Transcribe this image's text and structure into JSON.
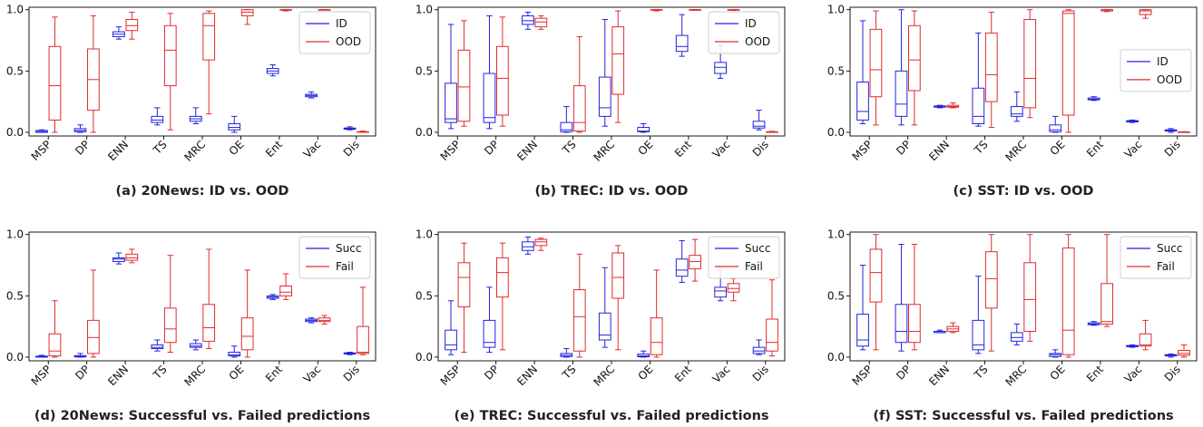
{
  "colors": {
    "first": "#2323e0",
    "second": "#e02b2b",
    "axis": "#000000"
  },
  "chart_data": [
    {
      "type": "box",
      "caption": "(a) 20News: ID vs. OOD",
      "categories": [
        "MSP",
        "DP",
        "ENN",
        "TS",
        "MRC",
        "OE",
        "Ent",
        "Vac",
        "Dis"
      ],
      "yticks": [
        "0.0",
        "0.5",
        "1.0"
      ],
      "ylim": [
        -0.03,
        1.02
      ],
      "legend_position": "top-right",
      "series": [
        {
          "name": "ID",
          "boxes": [
            [
              0,
              0,
              0.005,
              0.015,
              0.02
            ],
            [
              0,
              0.005,
              0.015,
              0.03,
              0.06
            ],
            [
              0.76,
              0.78,
              0.8,
              0.82,
              0.86
            ],
            [
              0.06,
              0.08,
              0.1,
              0.13,
              0.2
            ],
            [
              0.07,
              0.09,
              0.11,
              0.13,
              0.2
            ],
            [
              0,
              0.02,
              0.04,
              0.07,
              0.13
            ],
            [
              0.46,
              0.48,
              0.5,
              0.52,
              0.55
            ],
            [
              0.28,
              0.29,
              0.3,
              0.31,
              0.33
            ],
            [
              0.02,
              0.025,
              0.03,
              0.035,
              0.045
            ]
          ]
        },
        {
          "name": "OOD",
          "boxes": [
            [
              0,
              0.1,
              0.38,
              0.7,
              0.94
            ],
            [
              0,
              0.18,
              0.43,
              0.68,
              0.95
            ],
            [
              0.76,
              0.83,
              0.87,
              0.92,
              0.98
            ],
            [
              0.02,
              0.38,
              0.67,
              0.87,
              0.97
            ],
            [
              0.15,
              0.59,
              0.87,
              0.97,
              0.99
            ],
            [
              0.88,
              0.95,
              0.98,
              1.0,
              1.0
            ],
            [
              0.99,
              1.0,
              1.0,
              1.0,
              1.0
            ],
            [
              1.0,
              1.0,
              1.0,
              1.0,
              1.0
            ],
            [
              0,
              0.001,
              0.003,
              0.005,
              0.01
            ]
          ]
        }
      ]
    },
    {
      "type": "box",
      "caption": "(b) TREC: ID vs. OOD",
      "categories": [
        "MSP",
        "DP",
        "ENN",
        "TS",
        "MRC",
        "OE",
        "Ent",
        "Vac",
        "Dis"
      ],
      "yticks": [
        "0.0",
        "0.5",
        "1.0"
      ],
      "ylim": [
        -0.03,
        1.02
      ],
      "legend_position": "top-right",
      "series": [
        {
          "name": "ID",
          "boxes": [
            [
              0.03,
              0.08,
              0.11,
              0.4,
              0.88
            ],
            [
              0.03,
              0.08,
              0.12,
              0.48,
              0.95
            ],
            [
              0.84,
              0.88,
              0.91,
              0.95,
              0.98
            ],
            [
              0,
              0.005,
              0.02,
              0.08,
              0.21
            ],
            [
              0.05,
              0.13,
              0.2,
              0.45,
              0.92
            ],
            [
              0,
              0.005,
              0.01,
              0.04,
              0.07
            ],
            [
              0.62,
              0.66,
              0.7,
              0.79,
              0.96
            ],
            [
              0.44,
              0.48,
              0.53,
              0.57,
              0.71
            ],
            [
              0.02,
              0.035,
              0.05,
              0.09,
              0.18
            ]
          ]
        },
        {
          "name": "OOD",
          "boxes": [
            [
              0.05,
              0.09,
              0.37,
              0.67,
              0.91
            ],
            [
              0.05,
              0.14,
              0.44,
              0.7,
              0.94
            ],
            [
              0.84,
              0.86,
              0.9,
              0.93,
              0.95
            ],
            [
              0,
              0.01,
              0.08,
              0.38,
              0.78
            ],
            [
              0.08,
              0.31,
              0.64,
              0.86,
              0.99
            ],
            [
              0.99,
              1.0,
              1.0,
              1.0,
              1.0
            ],
            [
              0.995,
              1.0,
              1.0,
              1.0,
              1.0
            ],
            [
              0.995,
              1.0,
              1.0,
              1.0,
              1.0
            ],
            [
              0,
              0.001,
              0.002,
              0.004,
              0.008
            ]
          ]
        }
      ]
    },
    {
      "type": "box",
      "caption": "(c) SST: ID vs. OOD",
      "categories": [
        "MSP",
        "DP",
        "ENN",
        "TS",
        "MRC",
        "OE",
        "Ent",
        "Vac",
        "Dis"
      ],
      "yticks": [
        "0.0",
        "0.5",
        "1.0"
      ],
      "ylim": [
        -0.03,
        1.02
      ],
      "legend_position": "center-right",
      "series": [
        {
          "name": "ID",
          "boxes": [
            [
              0.07,
              0.1,
              0.17,
              0.41,
              0.91
            ],
            [
              0.06,
              0.13,
              0.23,
              0.5,
              1.0
            ],
            [
              0.2,
              0.205,
              0.21,
              0.215,
              0.22
            ],
            [
              0.05,
              0.07,
              0.13,
              0.36,
              0.81
            ],
            [
              0.09,
              0.13,
              0.15,
              0.21,
              0.33
            ],
            [
              0,
              0.005,
              0.02,
              0.06,
              0.13
            ],
            [
              0.26,
              0.265,
              0.27,
              0.28,
              0.29
            ],
            [
              0.08,
              0.085,
              0.09,
              0.095,
              0.1
            ],
            [
              0,
              0.01,
              0.015,
              0.02,
              0.03
            ]
          ]
        },
        {
          "name": "OOD",
          "boxes": [
            [
              0.06,
              0.29,
              0.51,
              0.84,
              0.99
            ],
            [
              0.06,
              0.34,
              0.59,
              0.87,
              0.99
            ],
            [
              0.2,
              0.205,
              0.21,
              0.22,
              0.24
            ],
            [
              0.04,
              0.25,
              0.47,
              0.81,
              0.98
            ],
            [
              0.12,
              0.2,
              0.44,
              0.92,
              1.0
            ],
            [
              0,
              0.14,
              0.97,
              0.99,
              1.0
            ],
            [
              0.985,
              0.99,
              1.0,
              1.0,
              1.0
            ],
            [
              0.93,
              0.96,
              0.99,
              1.0,
              1.0
            ],
            [
              0,
              0.001,
              0.002,
              0.003,
              0.005
            ]
          ]
        }
      ]
    },
    {
      "type": "box",
      "caption": "(d) 20News: Successful vs. Failed predictions",
      "categories": [
        "MSP",
        "DP",
        "ENN",
        "TS",
        "MRC",
        "OE",
        "Ent",
        "Vac",
        "Dis"
      ],
      "yticks": [
        "0.0",
        "0.5",
        "1.0"
      ],
      "ylim": [
        -0.03,
        1.02
      ],
      "legend_position": "top-right",
      "series": [
        {
          "name": "Succ",
          "boxes": [
            [
              0,
              0,
              0.003,
              0.008,
              0.015
            ],
            [
              0,
              0.002,
              0.006,
              0.012,
              0.03
            ],
            [
              0.76,
              0.78,
              0.8,
              0.81,
              0.85
            ],
            [
              0.05,
              0.07,
              0.08,
              0.1,
              0.14
            ],
            [
              0.06,
              0.08,
              0.09,
              0.11,
              0.14
            ],
            [
              0,
              0.01,
              0.02,
              0.04,
              0.09
            ],
            [
              0.47,
              0.48,
              0.49,
              0.5,
              0.51
            ],
            [
              0.28,
              0.29,
              0.3,
              0.31,
              0.32
            ],
            [
              0.02,
              0.025,
              0.03,
              0.035,
              0.04
            ]
          ]
        },
        {
          "name": "Fail",
          "boxes": [
            [
              0,
              0.01,
              0.05,
              0.19,
              0.46
            ],
            [
              0,
              0.03,
              0.16,
              0.3,
              0.71
            ],
            [
              0.77,
              0.79,
              0.81,
              0.84,
              0.88
            ],
            [
              0.04,
              0.12,
              0.23,
              0.4,
              0.83
            ],
            [
              0.07,
              0.13,
              0.24,
              0.43,
              0.88
            ],
            [
              0,
              0.06,
              0.17,
              0.32,
              0.71
            ],
            [
              0.47,
              0.5,
              0.53,
              0.58,
              0.68
            ],
            [
              0.27,
              0.29,
              0.3,
              0.32,
              0.34
            ],
            [
              0.02,
              0.03,
              0.04,
              0.25,
              0.57
            ]
          ]
        }
      ]
    },
    {
      "type": "box",
      "caption": "(e) TREC: Successful vs. Failed predictions",
      "categories": [
        "MSP",
        "DP",
        "ENN",
        "TS",
        "MRC",
        "OE",
        "Ent",
        "Vac",
        "Dis"
      ],
      "yticks": [
        "0.0",
        "0.5",
        "1.0"
      ],
      "ylim": [
        -0.03,
        1.02
      ],
      "legend_position": "top-right",
      "series": [
        {
          "name": "Succ",
          "boxes": [
            [
              0.02,
              0.06,
              0.1,
              0.22,
              0.46
            ],
            [
              0.04,
              0.08,
              0.12,
              0.3,
              0.57
            ],
            [
              0.84,
              0.87,
              0.9,
              0.94,
              0.98
            ],
            [
              0,
              0.005,
              0.015,
              0.03,
              0.07
            ],
            [
              0.08,
              0.14,
              0.18,
              0.36,
              0.73
            ],
            [
              0,
              0.003,
              0.01,
              0.025,
              0.05
            ],
            [
              0.61,
              0.66,
              0.71,
              0.8,
              0.95
            ],
            [
              0.46,
              0.49,
              0.54,
              0.57,
              0.71
            ],
            [
              0.02,
              0.03,
              0.05,
              0.08,
              0.14
            ]
          ]
        },
        {
          "name": "Fail",
          "boxes": [
            [
              0.04,
              0.41,
              0.65,
              0.77,
              0.93
            ],
            [
              0.06,
              0.49,
              0.69,
              0.81,
              0.93
            ],
            [
              0.87,
              0.91,
              0.94,
              0.96,
              0.97
            ],
            [
              0,
              0.05,
              0.33,
              0.55,
              0.84
            ],
            [
              0.06,
              0.48,
              0.65,
              0.85,
              0.91
            ],
            [
              0,
              0.02,
              0.12,
              0.32,
              0.71
            ],
            [
              0.62,
              0.72,
              0.78,
              0.83,
              0.96
            ],
            [
              0.46,
              0.53,
              0.56,
              0.6,
              0.64
            ],
            [
              0.01,
              0.05,
              0.12,
              0.31,
              0.63
            ]
          ]
        }
      ]
    },
    {
      "type": "box",
      "caption": "(f) SST: Successful vs. Failed predictions",
      "categories": [
        "MSP",
        "DP",
        "ENN",
        "TS",
        "MRC",
        "OE",
        "Ent",
        "Vac",
        "Dis"
      ],
      "yticks": [
        "0.0",
        "0.5",
        "1.0"
      ],
      "ylim": [
        -0.03,
        1.02
      ],
      "legend_position": "top-right",
      "series": [
        {
          "name": "Succ",
          "boxes": [
            [
              0.06,
              0.09,
              0.14,
              0.35,
              0.75
            ],
            [
              0.05,
              0.12,
              0.21,
              0.43,
              0.92
            ],
            [
              0.2,
              0.2,
              0.21,
              0.21,
              0.22
            ],
            [
              0.03,
              0.06,
              0.1,
              0.3,
              0.66
            ],
            [
              0.1,
              0.13,
              0.16,
              0.2,
              0.27
            ],
            [
              0,
              0.005,
              0.02,
              0.03,
              0.06
            ],
            [
              0.26,
              0.265,
              0.27,
              0.28,
              0.29
            ],
            [
              0.08,
              0.085,
              0.09,
              0.095,
              0.1
            ],
            [
              0,
              0.01,
              0.015,
              0.02,
              0.025
            ]
          ]
        },
        {
          "name": "Fail",
          "boxes": [
            [
              0.06,
              0.45,
              0.69,
              0.88,
              1.0
            ],
            [
              0.06,
              0.12,
              0.21,
              0.43,
              0.92
            ],
            [
              0.2,
              0.21,
              0.23,
              0.25,
              0.28
            ],
            [
              0.05,
              0.4,
              0.64,
              0.86,
              1.0
            ],
            [
              0.13,
              0.21,
              0.47,
              0.77,
              1.0
            ],
            [
              0,
              0.02,
              0.22,
              0.89,
              1.0
            ],
            [
              0.25,
              0.27,
              0.29,
              0.6,
              1.0
            ],
            [
              0.06,
              0.09,
              0.1,
              0.19,
              0.3
            ],
            [
              0,
              0.015,
              0.03,
              0.055,
              0.1
            ]
          ]
        }
      ]
    }
  ]
}
